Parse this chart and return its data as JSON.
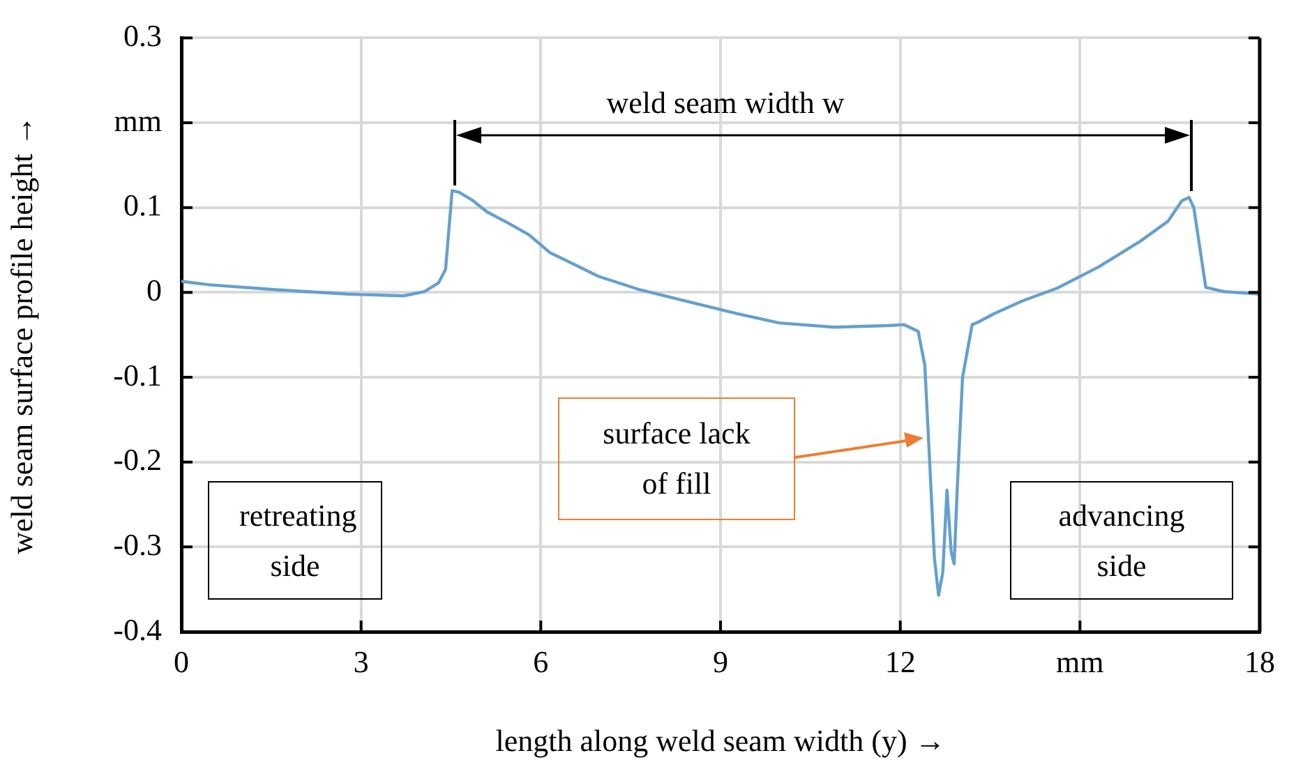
{
  "chart_data": {
    "type": "line",
    "xlabel": "length along weld seam width (y) →",
    "ylabel": "weld seam surface profile height →",
    "x": [
      0,
      0.46,
      1.62,
      2.78,
      3.71,
      4.06,
      4.29,
      4.41,
      4.52,
      4.64,
      4.87,
      5.1,
      5.45,
      5.8,
      6.15,
      6.5,
      6.96,
      7.66,
      8.58,
      9.28,
      9.98,
      10.9,
      11.83,
      12.06,
      12.3,
      12.41,
      12.48,
      12.57,
      12.64,
      12.71,
      12.78,
      12.85,
      12.9,
      12.95,
      13.04,
      13.2,
      13.3,
      13.57,
      14.04,
      14.62,
      15.31,
      16.0,
      16.47,
      16.7,
      16.82,
      16.9,
      17.1,
      17.4,
      18
    ],
    "series": [
      {
        "color": "#64a0cf",
        "values": [
          0.013,
          0.009,
          0.003,
          -0.002,
          -0.004,
          0.001,
          0.011,
          0.027,
          0.12,
          0.118,
          0.108,
          0.095,
          0.082,
          0.068,
          0.047,
          0.035,
          0.019,
          0.003,
          -0.013,
          -0.025,
          -0.036,
          -0.041,
          -0.039,
          -0.038,
          -0.046,
          -0.086,
          -0.184,
          -0.313,
          -0.357,
          -0.33,
          -0.233,
          -0.306,
          -0.32,
          -0.233,
          -0.1,
          -0.038,
          -0.035,
          -0.025,
          -0.01,
          0.005,
          0.03,
          0.06,
          0.084,
          0.108,
          0.112,
          0.1,
          0.006,
          0.001,
          -0.002
        ]
      }
    ],
    "xlim": [
      0,
      18
    ],
    "xticks": [
      0,
      3,
      6,
      9,
      12,
      {
        "value": 15,
        "label": "mm"
      },
      18
    ],
    "ylim": [
      -0.4,
      0.3
    ],
    "yticks": [
      -0.4,
      -0.3,
      -0.2,
      -0.1,
      0,
      0.1,
      {
        "value": 0.2,
        "label": "mm"
      },
      0.3
    ],
    "grid": true,
    "legend": false,
    "marker": "none",
    "line_style": "solid",
    "annotations": [
      "weld seam width w",
      "surface lack of fill",
      "retreating side",
      "advancing side"
    ]
  }
}
